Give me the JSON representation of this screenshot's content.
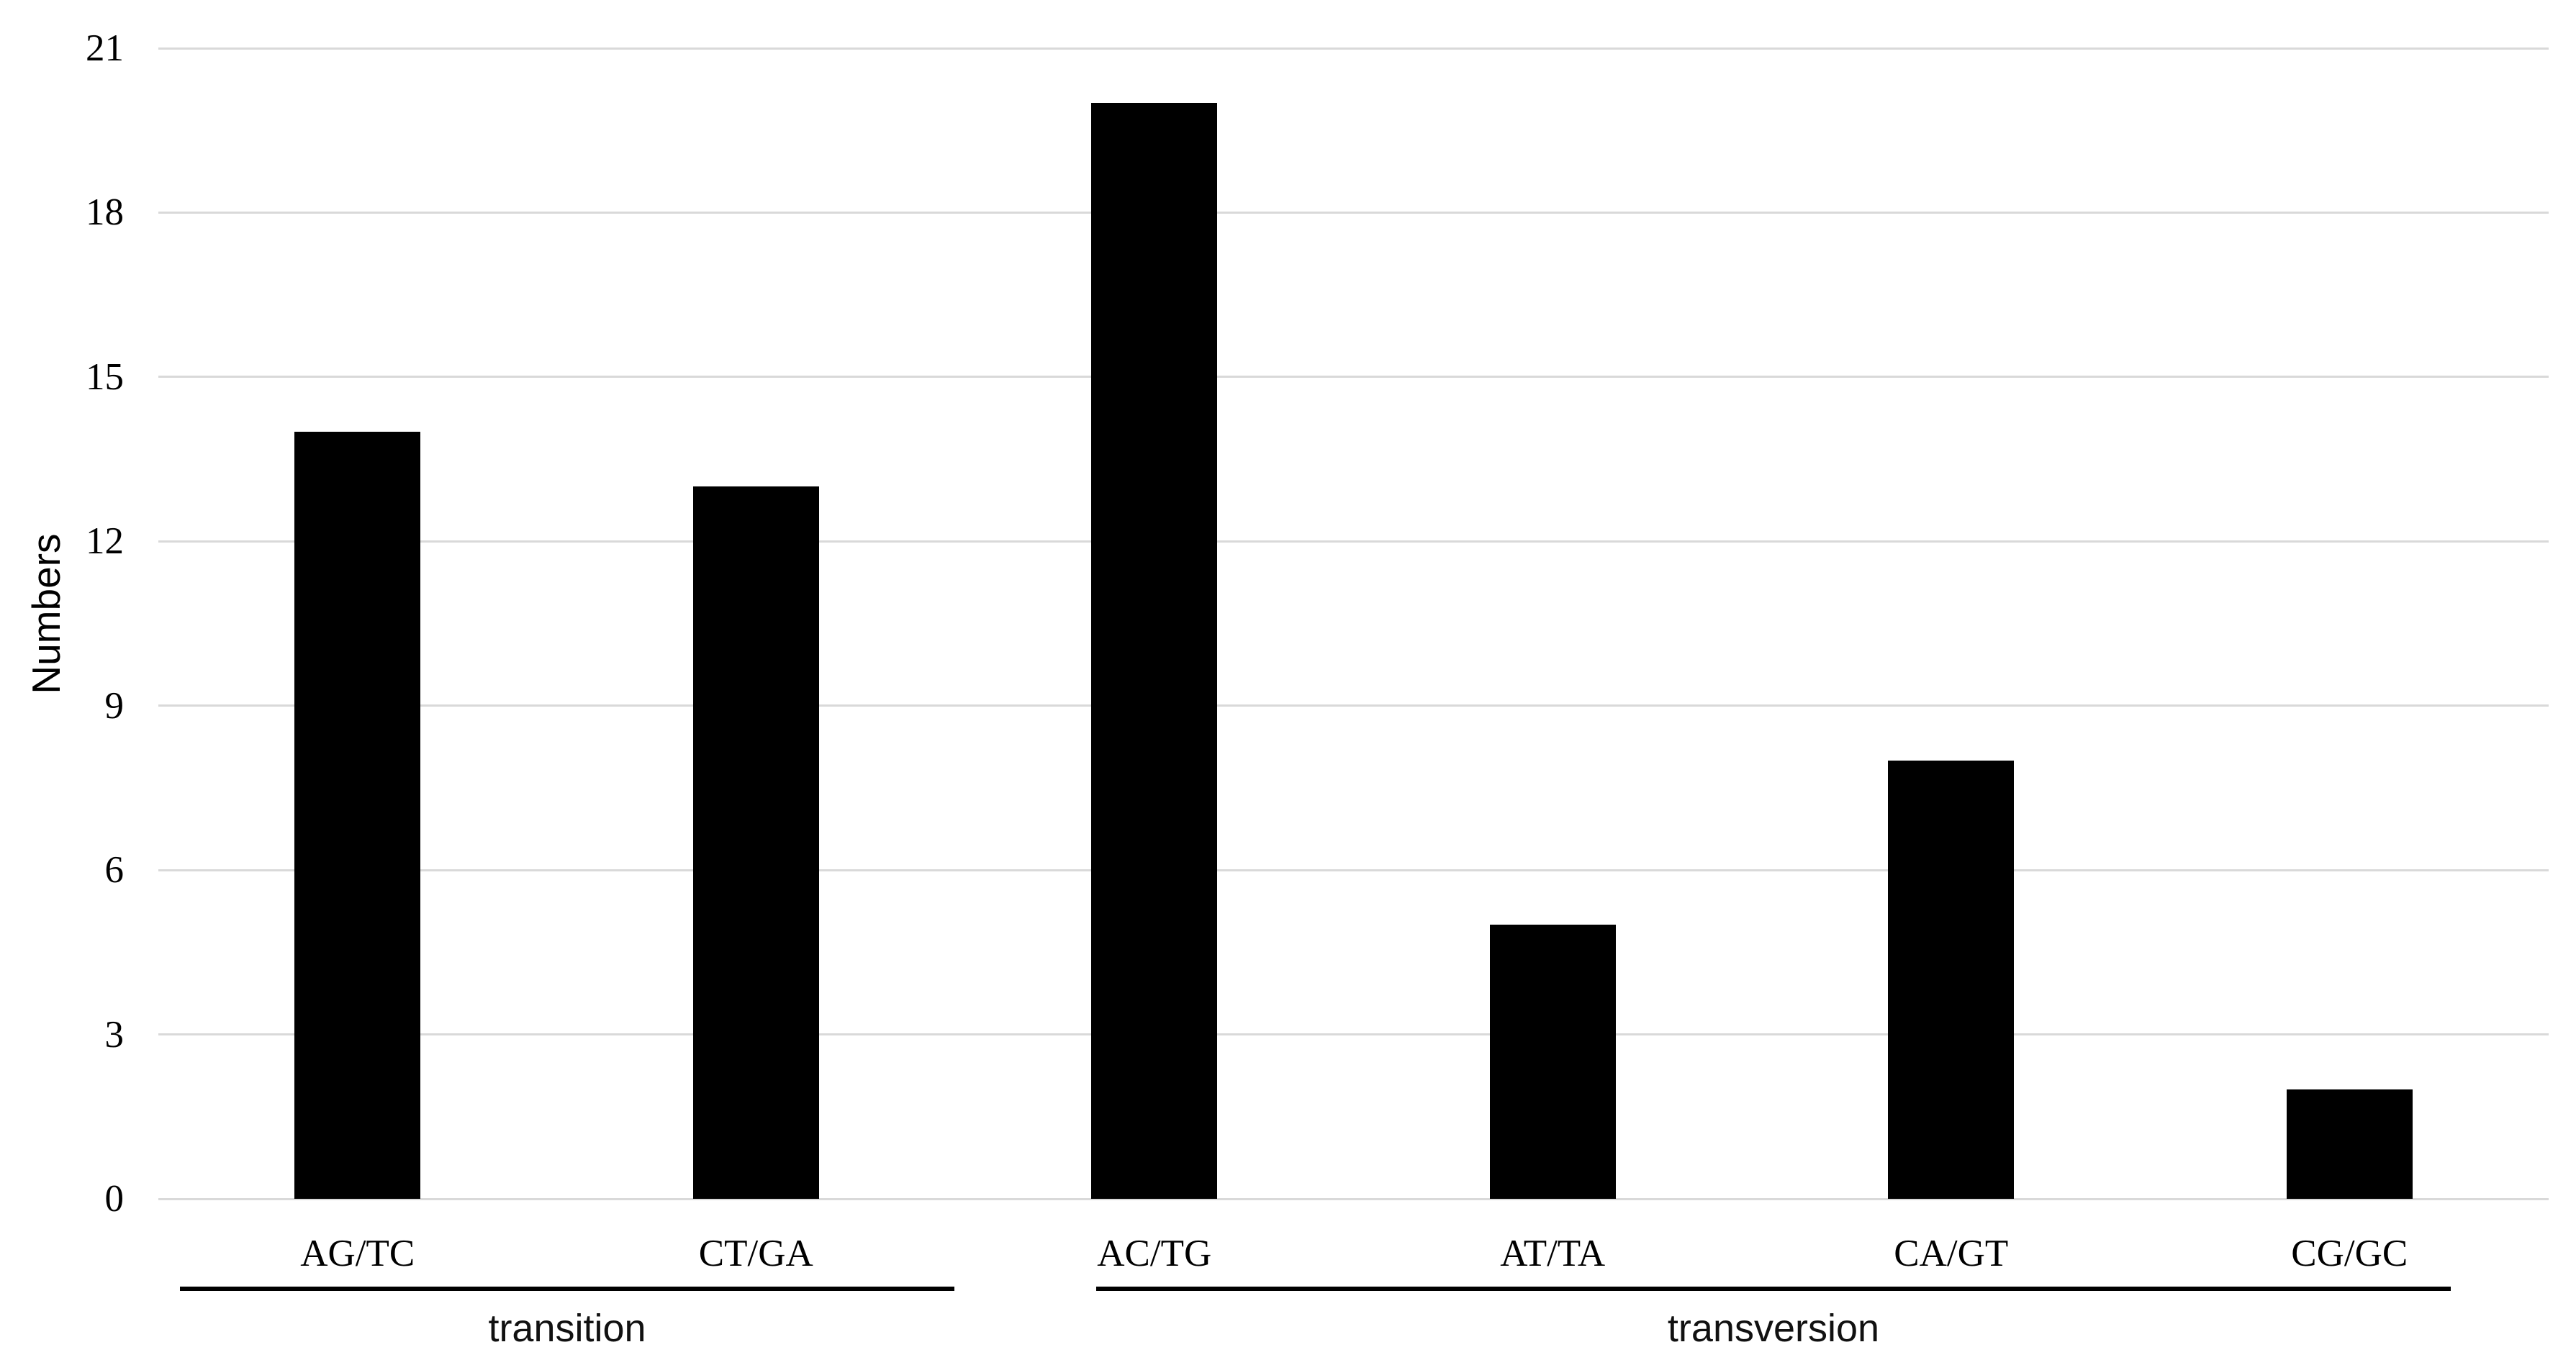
{
  "chart_data": {
    "type": "bar",
    "title": "",
    "ylabel": "Numbers",
    "xlabel": "",
    "ylim": [
      0,
      21
    ],
    "yticks": [
      0,
      3,
      6,
      9,
      12,
      15,
      18,
      21
    ],
    "grid": true,
    "legend": "none",
    "bar_color": "#000000",
    "gridline_color": "#d9d9d9",
    "background_color": "#ffffff",
    "categories": [
      "AG/TC",
      "CT/GA",
      "AC/TG",
      "AT/TA",
      "CA/GT",
      "CG/GC"
    ],
    "values": [
      14,
      13,
      20,
      5,
      8,
      2
    ],
    "groups": [
      {
        "label": "transition",
        "categories": [
          "AG/TC",
          "CT/GA"
        ],
        "start_index": 0,
        "end_index": 1
      },
      {
        "label": "transversion",
        "categories": [
          "AC/TG",
          "AT/TA",
          "CA/GT",
          "CG/GC"
        ],
        "start_index": 2,
        "end_index": 5
      }
    ]
  }
}
